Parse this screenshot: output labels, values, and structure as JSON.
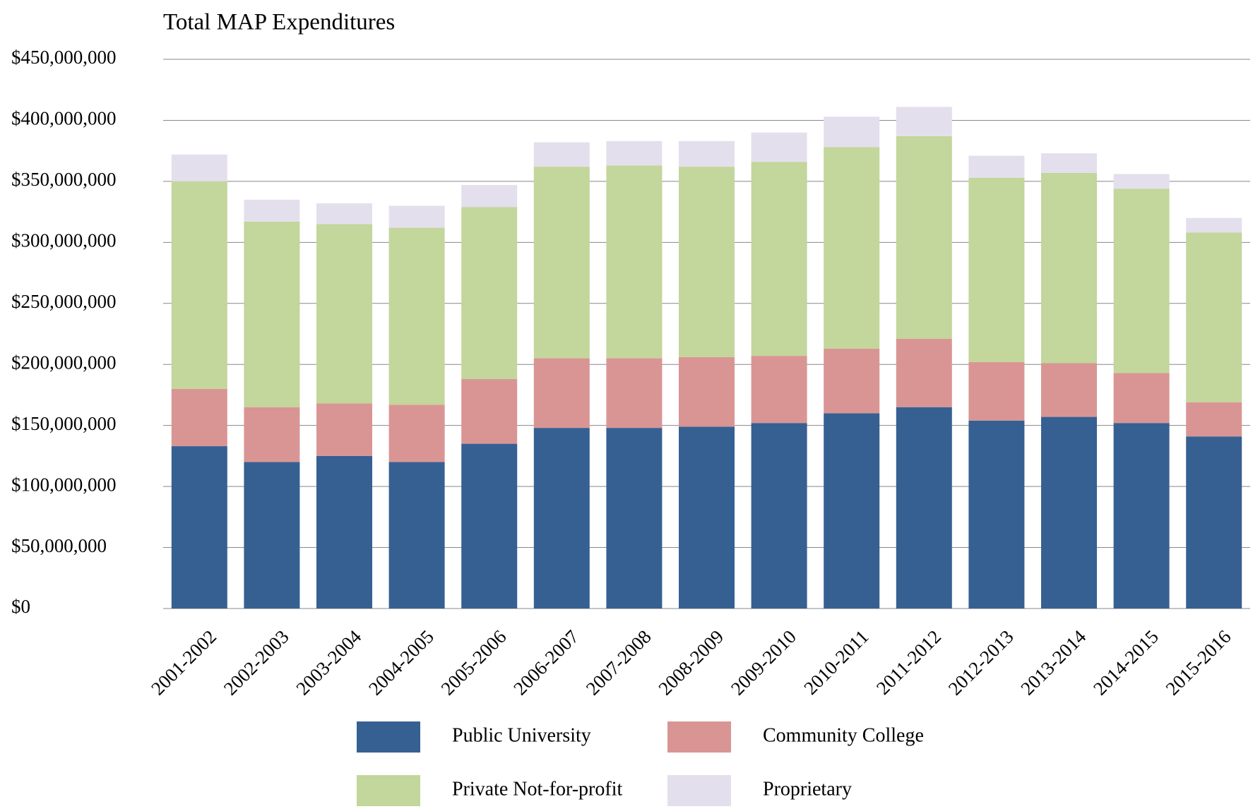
{
  "chart_data": {
    "type": "stacked_bar",
    "title": "Total MAP Expenditures",
    "categories": [
      "2001-2002",
      "2002-2003",
      "2003-2004",
      "2004-2005",
      "2005-2006",
      "2006-2007",
      "2007-2008",
      "2008-2009",
      "2009-2010",
      "2010-2011",
      "2011-2012",
      "2012-2013",
      "2013-2014",
      "2014-2015",
      "2015-2016"
    ],
    "series": [
      {
        "name": "Public University",
        "color": "#376092",
        "values": [
          133000000,
          120000000,
          125000000,
          120000000,
          135000000,
          148000000,
          148000000,
          149000000,
          152000000,
          160000000,
          165000000,
          154000000,
          157000000,
          152000000,
          141000000
        ]
      },
      {
        "name": "Community College",
        "color": "#d99594",
        "values": [
          47000000,
          45000000,
          43000000,
          47000000,
          53000000,
          57000000,
          57000000,
          57000000,
          55000000,
          53000000,
          56000000,
          48000000,
          44000000,
          41000000,
          28000000
        ]
      },
      {
        "name": "Private Not-for-profit",
        "color": "#c3d69b",
        "values": [
          170000000,
          152000000,
          147000000,
          145000000,
          141000000,
          157000000,
          158000000,
          156000000,
          159000000,
          165000000,
          166000000,
          151000000,
          156000000,
          151000000,
          139000000
        ]
      },
      {
        "name": "Proprietary",
        "color": "#e4dfec",
        "values": [
          22000000,
          18000000,
          17000000,
          18000000,
          18000000,
          20000000,
          20000000,
          21000000,
          24000000,
          25000000,
          24000000,
          18000000,
          16000000,
          12000000,
          12000000
        ]
      }
    ],
    "ylim": [
      0,
      450000000
    ],
    "yticks": [
      {
        "value": 0,
        "label": "$0"
      },
      {
        "value": 50000000,
        "label": "$50,000,000"
      },
      {
        "value": 100000000,
        "label": "$100,000,000"
      },
      {
        "value": 150000000,
        "label": "$150,000,000"
      },
      {
        "value": 200000000,
        "label": "$200,000,000"
      },
      {
        "value": 250000000,
        "label": "$250,000,000"
      },
      {
        "value": 300000000,
        "label": "$300,000,000"
      },
      {
        "value": 350000000,
        "label": "$350,000,000"
      },
      {
        "value": 400000000,
        "label": "$400,000,000"
      },
      {
        "value": 450000000,
        "label": "$450,000,000"
      }
    ],
    "grid": true,
    "legend": "bottom"
  }
}
